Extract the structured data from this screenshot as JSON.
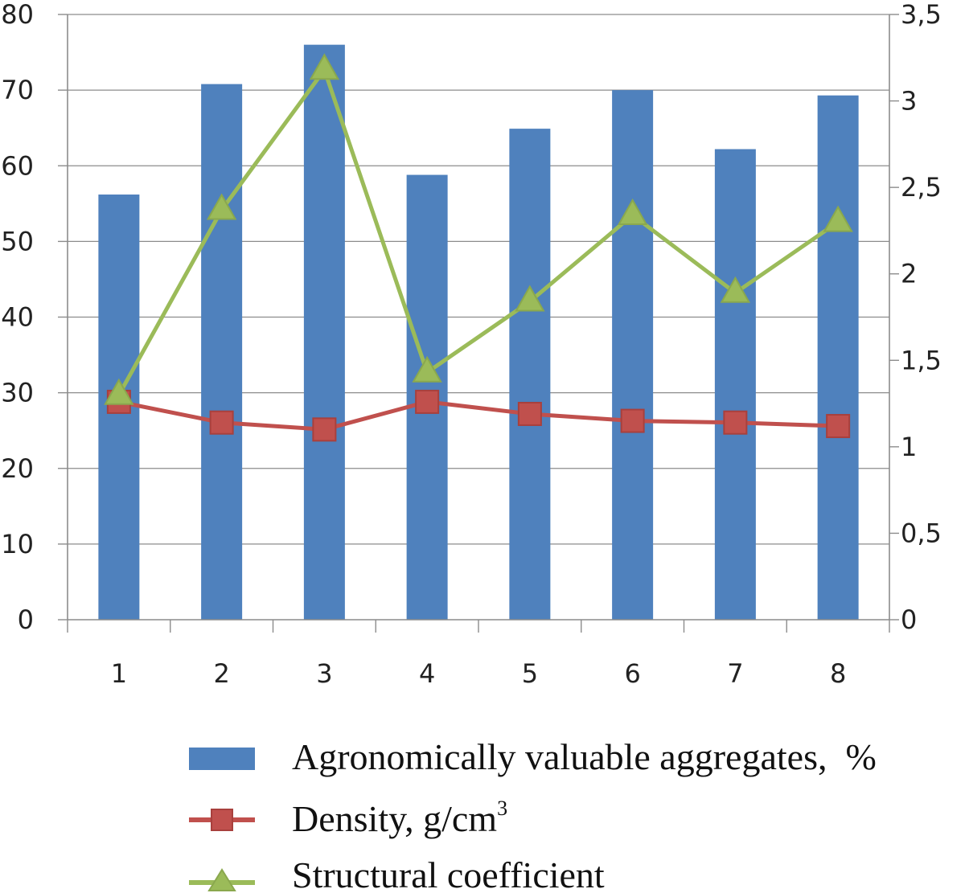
{
  "chart_data": {
    "type": "bar",
    "categories": [
      "1",
      "2",
      "3",
      "4",
      "5",
      "6",
      "7",
      "8"
    ],
    "series": [
      {
        "name": "Agronomically valuable aggregates,  %",
        "kind": "bar",
        "axis": "left",
        "color": "#4F81BD",
        "values": [
          56.2,
          70.8,
          76.0,
          58.8,
          64.9,
          70.0,
          62.2,
          69.3
        ]
      },
      {
        "name": "Density, g/cm",
        "name_superscript": "3",
        "kind": "line",
        "marker": "square",
        "axis": "right",
        "color": "#C0504D",
        "values": [
          1.26,
          1.14,
          1.1,
          1.26,
          1.19,
          1.15,
          1.14,
          1.12
        ]
      },
      {
        "name": "Structural coefficient",
        "kind": "line",
        "marker": "triangle",
        "axis": "right",
        "color": "#9BBB59",
        "values": [
          1.3,
          2.37,
          3.18,
          1.43,
          1.84,
          2.34,
          1.89,
          2.3
        ]
      }
    ],
    "left_axis": {
      "ylim": [
        0,
        80
      ],
      "ticks": [
        0,
        10,
        20,
        30,
        40,
        50,
        60,
        70,
        80
      ],
      "tick_labels": [
        "0",
        "10",
        "20",
        "30",
        "40",
        "50",
        "60",
        "70",
        "80"
      ]
    },
    "right_axis": {
      "ylim": [
        0,
        3.5
      ],
      "ticks": [
        0,
        0.5,
        1,
        1.5,
        2,
        2.5,
        3,
        3.5
      ],
      "tick_labels": [
        "0",
        "0,5",
        "1",
        "1,5",
        "2",
        "2,5",
        "3",
        "3,5"
      ]
    },
    "grid": true,
    "legend": "bottom",
    "title": "",
    "xlabel": "",
    "ylabel": ""
  }
}
